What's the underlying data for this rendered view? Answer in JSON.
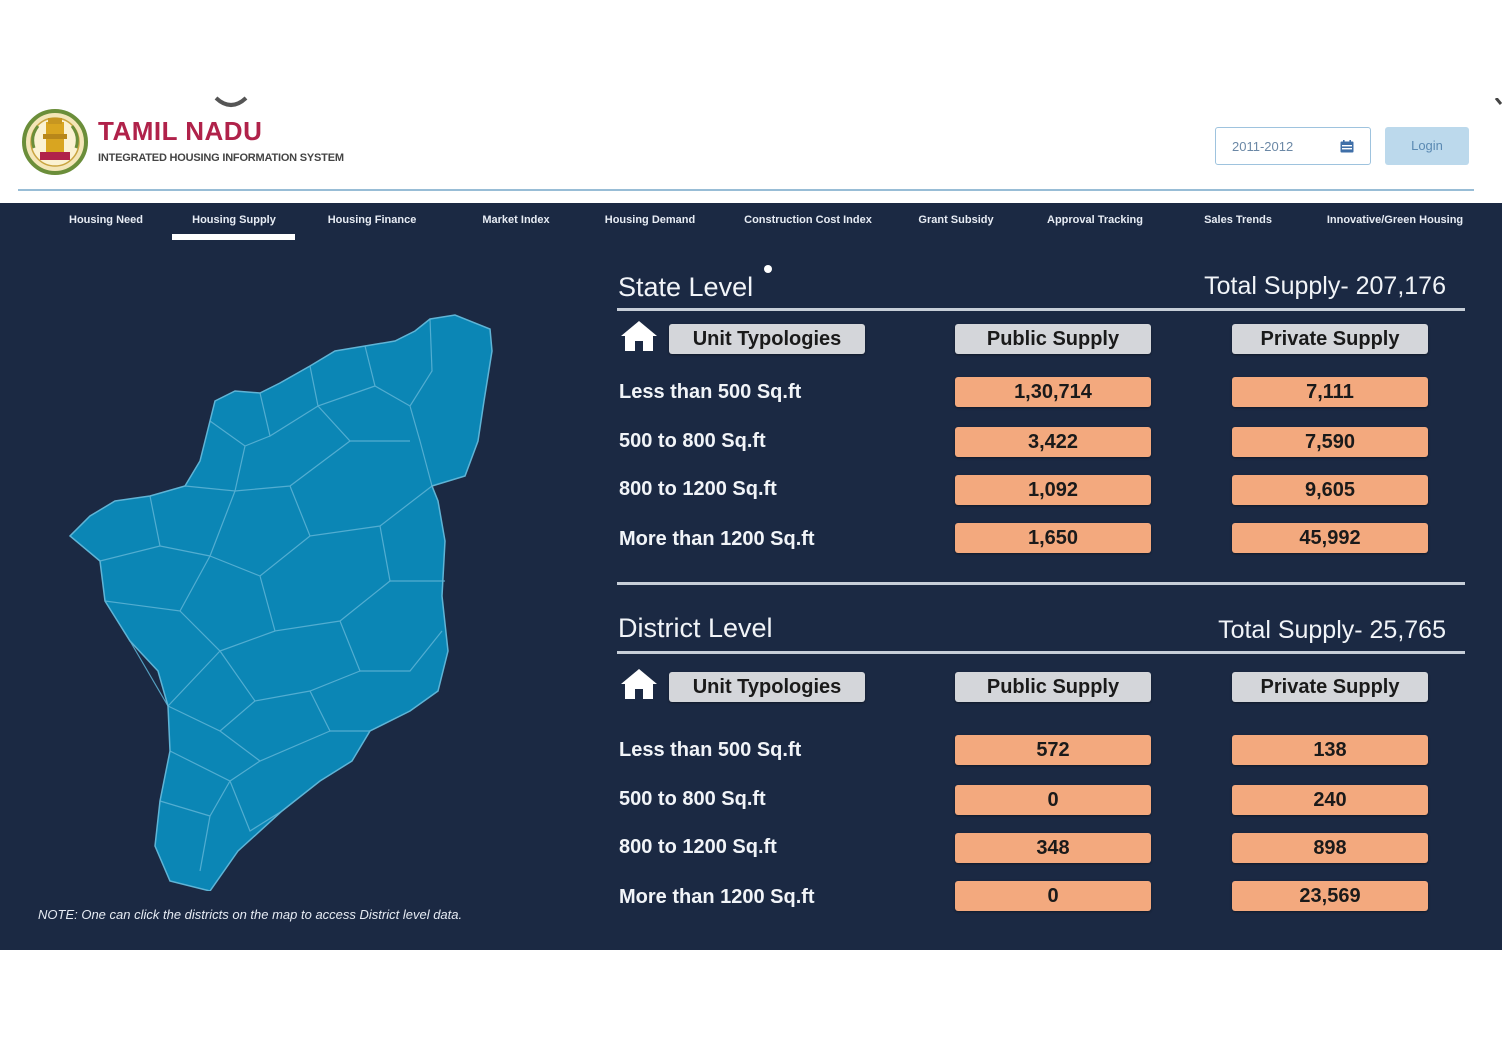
{
  "brand": {
    "title": "TAMIL NADU",
    "subtitle": "INTEGRATED HOUSING INFORMATION SYSTEM",
    "logo_icon": "tamil-nadu-emblem-icon"
  },
  "controls": {
    "year": "2011-2012",
    "year_icon": "calendar-icon",
    "login_label": "Login"
  },
  "nav": {
    "active": "Housing Supply",
    "items": [
      "Housing Need",
      "Housing Supply",
      "Housing Finance",
      "Market Index",
      "Housing Demand",
      "Construction Cost Index",
      "Grant Subsidy",
      "Approval Tracking",
      "Sales Trends",
      "Innovative/Green Housing"
    ]
  },
  "map": {
    "fill_color": "#0b86b5",
    "border_color": "#5fb4d6"
  },
  "note": "NOTE: One can click the districts on the map to access District level data.",
  "state": {
    "title": "State Level",
    "total": "Total Supply- 207,176",
    "headers": {
      "unit": "Unit Typologies",
      "public": "Public Supply",
      "private": "Private Supply"
    },
    "rows": [
      {
        "label": "Less than 500 Sq.ft",
        "public": "1,30,714",
        "private": "7,111"
      },
      {
        "label": "500 to 800 Sq.ft",
        "public": "3,422",
        "private": "7,590"
      },
      {
        "label": "800 to 1200 Sq.ft",
        "public": "1,092",
        "private": "9,605"
      },
      {
        "label": "More than 1200 Sq.ft",
        "public": "1,650",
        "private": "45,992"
      }
    ]
  },
  "district": {
    "title": "District Level",
    "total": "Total Supply- 25,765",
    "headers": {
      "unit": "Unit Typologies",
      "public": "Public Supply",
      "private": "Private Supply"
    },
    "rows": [
      {
        "label": "Less than 500 Sq.ft",
        "public": "572",
        "private": "138"
      },
      {
        "label": "500 to 800 Sq.ft",
        "public": "0",
        "private": "240"
      },
      {
        "label": "800 to 1200 Sq.ft",
        "public": "348",
        "private": "898"
      },
      {
        "label": "More than 1200 Sq.ft",
        "public": "0",
        "private": "23,569"
      }
    ]
  },
  "colors": {
    "panel_bg": "#1b2943",
    "value_pill": "#f3a97e",
    "header_pill": "#d4d6da",
    "brand": "#b0224a"
  }
}
